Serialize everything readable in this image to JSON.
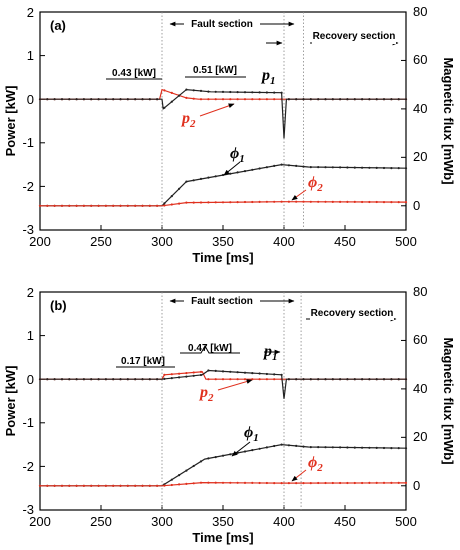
{
  "colors": {
    "black_series": "#222222",
    "red_series": "#e0301e",
    "frame": "#000000",
    "guide": "#888888"
  },
  "chart_data": [
    {
      "type": "line",
      "panel_label": "(a)",
      "xlabel": "Time [ms]",
      "ylabel_left": "Power [kW]",
      "ylabel_right": "Magnetic flux [mWb]",
      "xlim": [
        200,
        500
      ],
      "ylim_left": [
        -3,
        2
      ],
      "ylim_right": [
        -10,
        80
      ],
      "xticks": [
        "200",
        "250",
        "300",
        "350",
        "400",
        "450",
        "500"
      ],
      "yticks_left": [
        "-3",
        "-2",
        "-1",
        "0",
        "1",
        "2"
      ],
      "yticks_right": [
        "0",
        "20",
        "40",
        "60",
        "80"
      ],
      "guide_lines_x": [
        300,
        400,
        416
      ],
      "sections": {
        "fault": "Fault section",
        "recovery": "Recovery section"
      },
      "value_labels": {
        "left": "0.43 [kW]",
        "right": "0.51 [kW]"
      },
      "series_labels": {
        "p1": "p",
        "p1_sub": "1",
        "p2": "p",
        "p2_sub": "2",
        "phi1": "ϕ",
        "phi1_sub": "1",
        "phi2": "ϕ",
        "phi2_sub": "2"
      },
      "series": [
        {
          "axis": "left",
          "color": "red",
          "points": [
            [
              200,
              0
            ],
            [
              298,
              0
            ],
            [
              300,
              0.22
            ],
            [
              320,
              0.03
            ],
            [
              330,
              0
            ],
            [
              500,
              0
            ]
          ]
        },
        {
          "axis": "left",
          "color": "black",
          "points": [
            [
              200,
              0
            ],
            [
              300,
              0
            ],
            [
              301,
              -0.22
            ],
            [
              320,
              0.22
            ],
            [
              340,
              0.17
            ],
            [
              398,
              0.15
            ],
            [
              400,
              -0.9
            ],
            [
              402,
              0
            ],
            [
              500,
              0
            ]
          ]
        },
        {
          "axis": "right",
          "color": "black",
          "points": [
            [
              200,
              0
            ],
            [
              300,
              0
            ],
            [
              320,
              10
            ],
            [
              398,
              17
            ],
            [
              420,
              16
            ],
            [
              500,
              15.5
            ]
          ]
        },
        {
          "axis": "right",
          "color": "red",
          "points": [
            [
              200,
              0
            ],
            [
              300,
              0
            ],
            [
              320,
              1.3
            ],
            [
              400,
              1.7
            ],
            [
              500,
              1.5
            ]
          ]
        }
      ]
    },
    {
      "type": "line",
      "panel_label": "(b)",
      "xlabel": "Time [ms]",
      "ylabel_left": "Power [kW]",
      "ylabel_right": "Magnetic flux [mWb]",
      "xlim": [
        200,
        500
      ],
      "ylim_left": [
        -3,
        2
      ],
      "ylim_right": [
        -10,
        80
      ],
      "xticks": [
        "200",
        "250",
        "300",
        "350",
        "400",
        "450",
        "500"
      ],
      "yticks_left": [
        "-3",
        "-2",
        "-1",
        "0",
        "1",
        "2"
      ],
      "yticks_right": [
        "0",
        "20",
        "40",
        "60",
        "80"
      ],
      "guide_lines_x": [
        300,
        400,
        414
      ],
      "sections": {
        "fault": "Fault section",
        "recovery": "Recovery section"
      },
      "value_labels": {
        "left": "0.17 [kW]",
        "right": "0.47 [kW]"
      },
      "series_labels": {
        "p1": "p",
        "p1_sub": "1",
        "p2": "p",
        "p2_sub": "2",
        "phi1": "ϕ",
        "phi1_sub": "1",
        "phi2": "ϕ",
        "phi2_sub": "2"
      },
      "series": [
        {
          "axis": "left",
          "color": "red",
          "points": [
            [
              200,
              0
            ],
            [
              300,
              0
            ],
            [
              302,
              0.1
            ],
            [
              333,
              0.17
            ],
            [
              336,
              0
            ],
            [
              500,
              0
            ]
          ]
        },
        {
          "axis": "left",
          "color": "black",
          "points": [
            [
              200,
              0
            ],
            [
              300,
              0
            ],
            [
              333,
              0.1
            ],
            [
              338,
              0.2
            ],
            [
              398,
              0.1
            ],
            [
              400,
              -0.45
            ],
            [
              402,
              0
            ],
            [
              500,
              0
            ]
          ]
        },
        {
          "axis": "right",
          "color": "black",
          "points": [
            [
              200,
              0
            ],
            [
              300,
              0
            ],
            [
              335,
              11
            ],
            [
              398,
              17
            ],
            [
              420,
              16
            ],
            [
              500,
              15.5
            ]
          ]
        },
        {
          "axis": "right",
          "color": "red",
          "points": [
            [
              200,
              0
            ],
            [
              300,
              0
            ],
            [
              333,
              1.3
            ],
            [
              400,
              1.1
            ],
            [
              500,
              1.2
            ]
          ]
        }
      ]
    }
  ]
}
